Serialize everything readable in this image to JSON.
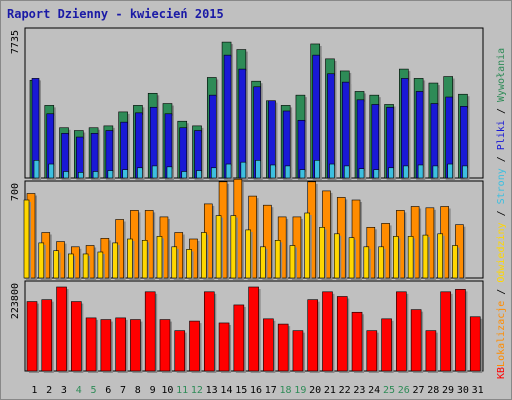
{
  "chart_data": {
    "type": "bar",
    "title": "Raport Dzienny -  kwiecień 2015",
    "categories": [
      1,
      2,
      3,
      4,
      5,
      6,
      7,
      8,
      9,
      10,
      11,
      12,
      13,
      14,
      15,
      16,
      17,
      18,
      19,
      20,
      21,
      22,
      23,
      24,
      25,
      26,
      27,
      28,
      29,
      30,
      31
    ],
    "weekend_days": [
      4,
      5,
      11,
      12,
      18,
      19,
      25,
      26
    ],
    "panels": [
      {
        "name": "top",
        "ymax_label": "7735",
        "ymax": 7735,
        "series": [
          {
            "name": "Wywołania",
            "color": "#2e8b57",
            "values": [
              5250,
              3900,
              2700,
              2550,
              2700,
              2800,
              3550,
              3900,
              4550,
              4000,
              3050,
              2800,
              5400,
              7300,
              6900,
              5200,
              4150,
              3900,
              4450,
              7200,
              6400,
              5750,
              4650,
              4450,
              3950,
              5850,
              5350,
              5100,
              5450,
              4500,
              null
            ]
          },
          {
            "name": "Pliki",
            "color": "#1919d6",
            "values": [
              5350,
              3450,
              2400,
              2200,
              2400,
              2550,
              3000,
              3500,
              3800,
              3450,
              2700,
              2550,
              4450,
              6600,
              5850,
              4900,
              4150,
              3600,
              3100,
              6600,
              5600,
              5150,
              4200,
              3950,
              3800,
              5350,
              4650,
              4000,
              4350,
              3850,
              null
            ]
          },
          {
            "name": "Strony",
            "color": "#3dbfe0",
            "values": [
              950,
              750,
              350,
              300,
              350,
              400,
              450,
              550,
              650,
              600,
              350,
              400,
              550,
              750,
              850,
              950,
              700,
              650,
              450,
              950,
              750,
              650,
              500,
              450,
              550,
              650,
              700,
              650,
              750,
              650,
              null
            ]
          }
        ]
      },
      {
        "name": "middle",
        "ymax_label": "700",
        "ymax": 700,
        "series": [
          {
            "name": "Odwiedziny",
            "color": "#ffd700",
            "values": [
              600,
              270,
              210,
              185,
              185,
              200,
              270,
              300,
              290,
              320,
              240,
              220,
              350,
              480,
              480,
              370,
              240,
              290,
              250,
              500,
              390,
              340,
              310,
              240,
              240,
              320,
              320,
              330,
              340,
              250,
              null
            ]
          },
          {
            "name": "Lokalizacje",
            "color": "#ff8c00",
            "values": [
              650,
              350,
              280,
              240,
              250,
              305,
              450,
              520,
              520,
              470,
              350,
              300,
              570,
              740,
              760,
              630,
              560,
              470,
              470,
              740,
              670,
              620,
              600,
              390,
              420,
              520,
              550,
              540,
              550,
              410,
              null
            ]
          }
        ]
      },
      {
        "name": "bottom",
        "ymax_label": "223800",
        "ymax": 223800,
        "series": [
          {
            "name": "KB",
            "color": "#ff0000",
            "values": [
              185000,
              190000,
              223800,
              185000,
              141500,
              137000,
              141500,
              137000,
              211000,
              137000,
              107500,
              133000,
              211000,
              128000,
              176000,
              223800,
              139000,
              125000,
              107500,
              190000,
              211000,
              198500,
              156500,
              107500,
              139000,
              211000,
              163500,
              107500,
              211000,
              217500,
              144500
            ]
          }
        ]
      }
    ],
    "legend": {
      "placement": "right, rotated",
      "order": [
        "KB",
        "Lokalizacje",
        "/",
        "Odwiedziny",
        "/",
        "Strony",
        "/",
        "Pliki",
        "/",
        "Wywołania"
      ]
    },
    "colors": {
      "title": "#1a1aa6",
      "weekday_label": "#000000",
      "weekend_label": "#2e8b57",
      "background": "#c0c0c0"
    }
  }
}
